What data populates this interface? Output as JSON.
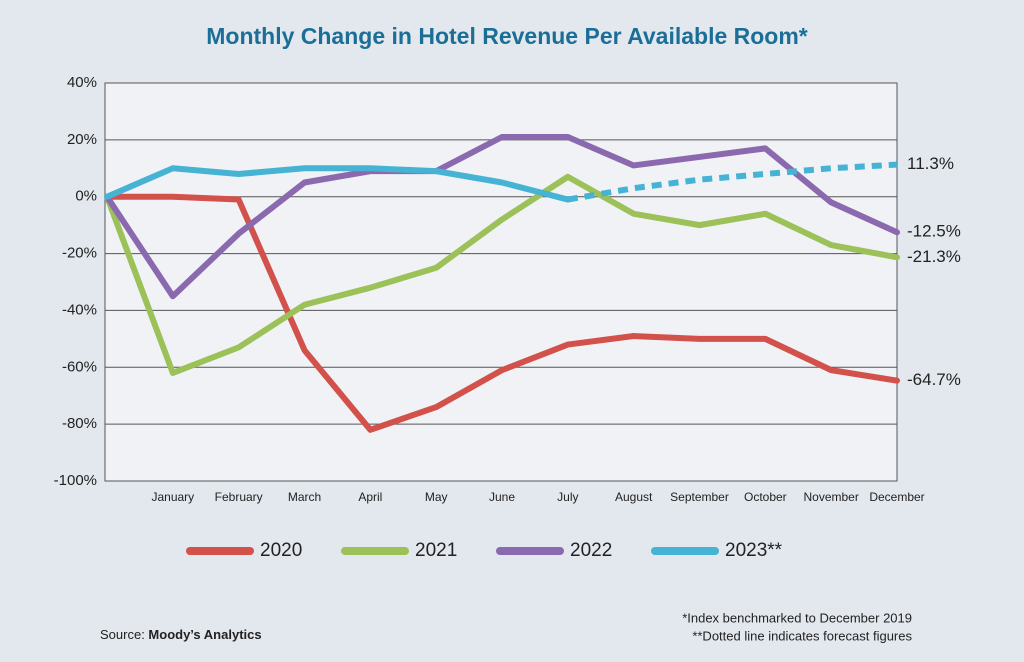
{
  "chart_data": {
    "type": "line",
    "title": "Monthly Change in Hotel Revenue Per Available Room*",
    "categories": [
      null,
      "January",
      "February",
      "March",
      "April",
      "May",
      "June",
      "July",
      "August",
      "September",
      "October",
      "November",
      "December"
    ],
    "ylim": [
      -100,
      40
    ],
    "yticks": [
      {
        "value": 40,
        "label": "40%"
      },
      {
        "value": 20,
        "label": "20%"
      },
      {
        "value": 0,
        "label": "0%"
      },
      {
        "value": -20,
        "label": "-20%"
      },
      {
        "value": -40,
        "label": "-40%"
      },
      {
        "value": -60,
        "label": "-60%"
      },
      {
        "value": -80,
        "label": "-80%"
      },
      {
        "value": -100,
        "label": "-100%"
      }
    ],
    "grid": true,
    "legend": "bottom",
    "series": [
      {
        "name": "2020",
        "color": "#d2524b",
        "values": [
          0,
          0,
          -1,
          -54,
          -82,
          -74,
          -61,
          -52,
          -49,
          -50,
          -50,
          -61,
          -64.7
        ],
        "value_labels": [
          null,
          null,
          null,
          null,
          null,
          null,
          null,
          null,
          null,
          null,
          null,
          null,
          "-64.7%"
        ]
      },
      {
        "name": "2021",
        "color": "#9cc158",
        "values": [
          0,
          -62,
          -53,
          -38,
          -32,
          -25,
          -8,
          7,
          -6,
          -10,
          -6,
          -17,
          -21.3
        ],
        "value_labels": [
          null,
          null,
          null,
          null,
          null,
          null,
          null,
          null,
          null,
          null,
          null,
          null,
          "-21.3%"
        ]
      },
      {
        "name": "2022",
        "color": "#8b69ae",
        "values": [
          0,
          -35,
          -13,
          5,
          9,
          9,
          21,
          21,
          11,
          14,
          17,
          -2,
          -12.5
        ],
        "value_labels": [
          null,
          null,
          null,
          null,
          null,
          null,
          null,
          null,
          null,
          null,
          null,
          null,
          "-12.5%"
        ]
      },
      {
        "name": "2023**",
        "color": "#46b3d4",
        "values": [
          0,
          10,
          8,
          10,
          10,
          9,
          5,
          -1,
          null,
          null,
          null,
          null,
          null
        ],
        "forecast": [
          null,
          null,
          null,
          null,
          null,
          null,
          null,
          -1,
          3,
          6,
          8,
          10,
          11.3
        ],
        "forecast_labels": [
          null,
          null,
          null,
          null,
          null,
          null,
          null,
          null,
          null,
          null,
          null,
          null,
          "11.3%"
        ]
      }
    ],
    "source_label": "Source: ",
    "source": "Moody’s Analytics",
    "notes": [
      "*Index benchmarked to December 2019",
      "**Dotted line indicates forecast figures"
    ]
  }
}
